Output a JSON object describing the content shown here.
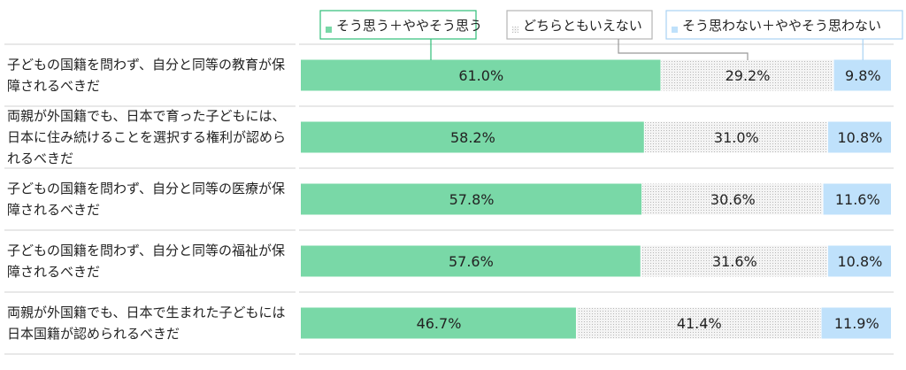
{
  "chart_data": {
    "type": "bar",
    "orientation": "horizontal",
    "stacked": true,
    "percent": true,
    "categories": [
      "子どもの国籍を問わず、自分と同等の教育が保障されるべきだ",
      "両親が外国籍でも、日本で育った子どもには、日本に住み続けることを選択する権利が認められるべきだ",
      "子どもの国籍を問わず、自分と同等の医療が保障されるべきだ",
      "子どもの国籍を問わず、自分と同等の福祉が保障されるべきだ",
      "両親が外国籍でも、日本で生まれた子どもには日本国籍が認められるべきだ"
    ],
    "series": [
      {
        "name": "そう思う＋ややそう思う",
        "values": [
          61.0,
          58.2,
          57.8,
          57.6,
          46.7
        ],
        "color": "#79d8a7"
      },
      {
        "name": "どちらともいえない",
        "values": [
          29.2,
          31.0,
          30.6,
          31.6,
          41.4
        ],
        "color": "#e6e6e6"
      },
      {
        "name": "そう思わない＋ややそう思わない",
        "values": [
          9.8,
          10.8,
          11.6,
          10.8,
          11.9
        ],
        "color": "#bfe1fb"
      }
    ],
    "legend": "top",
    "xlim": [
      0,
      100
    ]
  }
}
